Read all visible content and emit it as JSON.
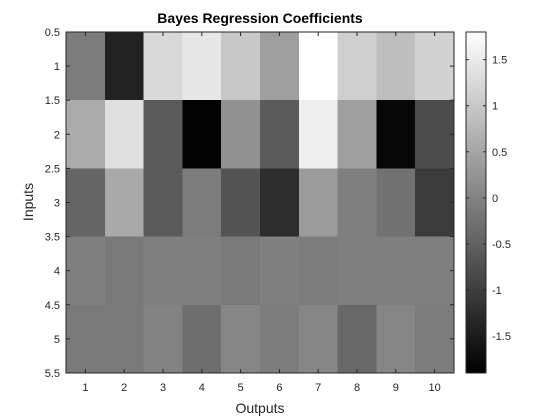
{
  "chart_data": {
    "type": "heatmap",
    "title": "Bayes Regression Coefficients",
    "xlabel": "Outputs",
    "ylabel": "Inputs",
    "x_ticks": [
      "1",
      "2",
      "3",
      "4",
      "5",
      "6",
      "7",
      "8",
      "9",
      "10"
    ],
    "y_ticks": [
      "0.5",
      "1",
      "1.5",
      "2",
      "2.5",
      "3",
      "3.5",
      "4",
      "4.5",
      "5",
      "5.5"
    ],
    "xlim": [
      0.5,
      10.5
    ],
    "ylim": [
      0.5,
      5.5
    ],
    "y_direction": "reverse",
    "colormap": "gray",
    "clim": [
      -1.9,
      1.8
    ],
    "colorbar": {
      "location": "right",
      "ticks": [
        "-1.5",
        "-1",
        "-0.5",
        "0",
        "0.5",
        "1",
        "1.5"
      ],
      "tick_values": [
        -1.5,
        -1,
        -0.5,
        0,
        0.5,
        1,
        1.5
      ]
    },
    "rows": [
      "1",
      "2",
      "3",
      "4",
      "5"
    ],
    "columns": [
      "1",
      "2",
      "3",
      "4",
      "5",
      "6",
      "7",
      "8",
      "9",
      "10"
    ],
    "values": [
      [
        -0.1,
        -1.4,
        1.25,
        1.45,
        1.0,
        0.4,
        1.8,
        1.1,
        0.85,
        1.15
      ],
      [
        0.6,
        1.35,
        -0.6,
        -1.85,
        0.2,
        -0.6,
        1.55,
        0.4,
        -1.8,
        -0.8
      ],
      [
        -0.45,
        0.55,
        -0.6,
        -0.1,
        -0.7,
        -1.25,
        0.35,
        -0.05,
        -0.25,
        -1.05
      ],
      [
        -0.05,
        -0.15,
        -0.05,
        -0.05,
        -0.15,
        -0.05,
        -0.1,
        -0.05,
        -0.05,
        -0.05
      ],
      [
        -0.15,
        -0.15,
        0.0,
        -0.3,
        0.05,
        -0.1,
        0.05,
        -0.4,
        0.05,
        -0.1
      ]
    ]
  }
}
